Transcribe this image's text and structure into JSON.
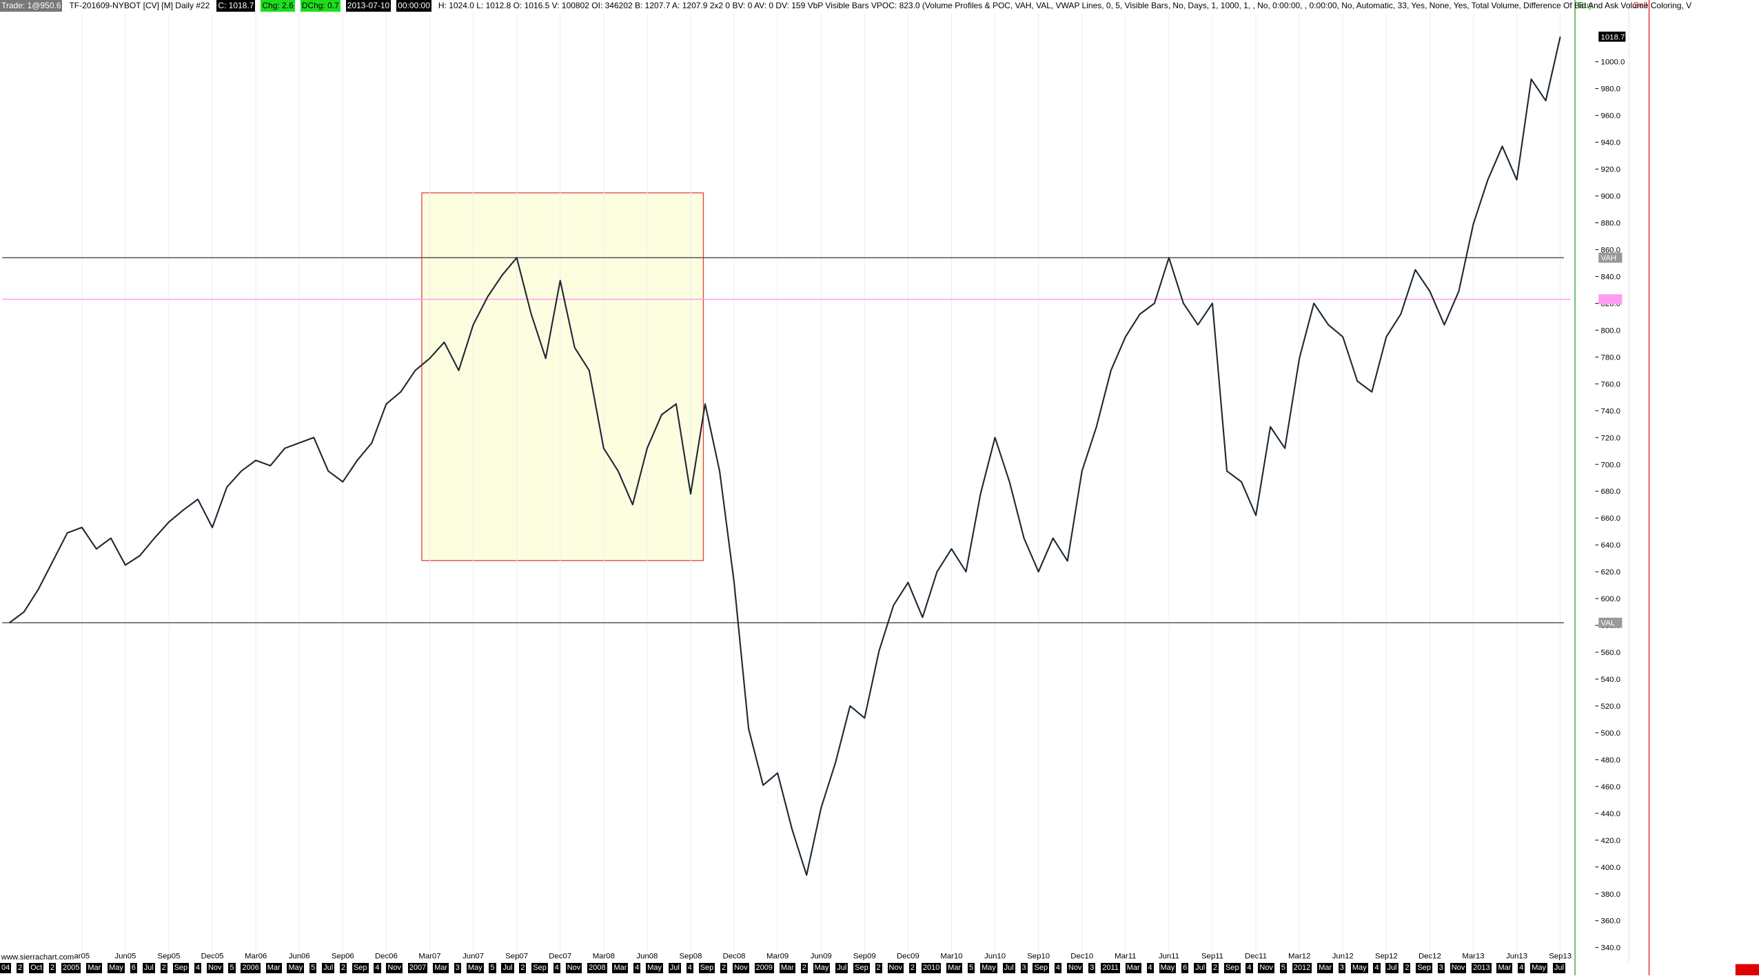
{
  "header": {
    "trade": "Trade: 1@950.6",
    "symbol": "TF-201609-NYBOT [CV] [M]  Daily  #22",
    "close": "C: 1018.7",
    "chg": "Chg: 2.6",
    "dchg": "DChg: 0.7",
    "date": "2013-07-10",
    "time": "00:00:00",
    "details": "H: 1024.0  L: 1012.8  O: 1016.5  V: 100802  OI: 346202  B: 1207.7  A: 1207.9  2x2  0  BV: 0  AV: 0  DV: 159  VbP Visible Bars  VPOC: 823.0   (Volume Profiles & POC, VAH, VAL, VWAP Lines, 0, 5, Visible Bars, No, Days, 1, 1000, 1, , No, 0:00:00, , 0:00:00, No, Automatic, 33, Yes, None, Yes, Total Volume, Difference Of Bid And Ask Volume Coloring, V",
    "buy": "Buy",
    "sell": "Sell"
  },
  "footer": {
    "site": "www.sierrachart.com",
    "date_bar": [
      "04",
      "2",
      "Oct",
      "2",
      "2005",
      "Mar",
      "May",
      "6",
      "Jul",
      "2",
      "Sep",
      "4",
      "Nov",
      "5",
      "2006",
      "Mar",
      "May",
      "5",
      "Jul",
      "2",
      "Sep",
      "4",
      "Nov",
      "2007",
      "Mar",
      "3",
      "May",
      "5",
      "Jul",
      "2",
      "Sep",
      "4",
      "Nov",
      "2008",
      "Mar",
      "4",
      "May",
      "Jul",
      "4",
      "Sep",
      "2",
      "Nov",
      "2009",
      "Mar",
      "2",
      "May",
      "Jul",
      "Sep",
      "2",
      "Nov",
      "2",
      "2010",
      "Mar",
      "5",
      "May",
      "Jul",
      "3",
      "Sep",
      "4",
      "Nov",
      "3",
      "2011",
      "Mar",
      "4",
      "May",
      "6",
      "Jul",
      "2",
      "Sep",
      "4",
      "Nov",
      "5",
      "2012",
      "Mar",
      "3",
      "May",
      "4",
      "Jul",
      "2",
      "Sep",
      "3",
      "Nov",
      "2013",
      "Mar",
      "4",
      "May",
      "Jul"
    ]
  },
  "chart_data": {
    "type": "line",
    "color": "#1c2833",
    "categories": [
      null,
      null,
      null,
      null,
      null,
      "ar05",
      null,
      null,
      "Jun05",
      null,
      null,
      "Sep05",
      null,
      null,
      "Dec05",
      null,
      null,
      "Mar06",
      null,
      null,
      "Jun06",
      null,
      null,
      "Sep06",
      null,
      null,
      "Dec06",
      null,
      null,
      "Mar07",
      null,
      null,
      "Jun07",
      null,
      null,
      "Sep07",
      null,
      null,
      "Dec07",
      null,
      null,
      "Mar08",
      null,
      null,
      "Jun08",
      null,
      null,
      "Sep08",
      null,
      null,
      "Dec08",
      null,
      null,
      "Mar09",
      null,
      null,
      "Jun09",
      null,
      null,
      "Sep09",
      null,
      null,
      "Dec09",
      null,
      null,
      "Mar10",
      null,
      null,
      "Jun10",
      null,
      null,
      "Sep10",
      null,
      null,
      "Dec10",
      null,
      null,
      "Mar11",
      null,
      null,
      "Jun11",
      null,
      null,
      "Sep11",
      null,
      null,
      "Dec11",
      null,
      null,
      "Mar12",
      null,
      null,
      "Jun12",
      null,
      null,
      "Sep12",
      null,
      null,
      "Dec12",
      null,
      null,
      "Mar13",
      null,
      null,
      "Jun13",
      null,
      null,
      "Sep13"
    ],
    "values": [
      582,
      590,
      607,
      628,
      649,
      653,
      637,
      645,
      625,
      632,
      645,
      657,
      666,
      674,
      653,
      683,
      695,
      703,
      699,
      712,
      716,
      720,
      695,
      687,
      703,
      716,
      745,
      754,
      770,
      779,
      791,
      770,
      804,
      825,
      841,
      854,
      812,
      779,
      837,
      787,
      770,
      712,
      695,
      670,
      712,
      737,
      745,
      678,
      745,
      695,
      612,
      503,
      461,
      470,
      428,
      394,
      444,
      478,
      520,
      511,
      561,
      595,
      612,
      586,
      620,
      637,
      620,
      678,
      720,
      687,
      645,
      620,
      645,
      628,
      695,
      728,
      770,
      795,
      812,
      820,
      854,
      820,
      804,
      820,
      695,
      687,
      662,
      728,
      712,
      779,
      820,
      804,
      795,
      762,
      754,
      795,
      812,
      845,
      829,
      804,
      829,
      879,
      912,
      937,
      912,
      987,
      971,
      1018.7
    ],
    "ylim": [
      336,
      1046
    ],
    "yticks": [
      {
        "value": 340,
        "label": "340.0"
      },
      {
        "value": 360,
        "label": "360.0"
      },
      {
        "value": 380,
        "label": "380.0"
      },
      {
        "value": 400,
        "label": "400.0"
      },
      {
        "value": 420,
        "label": "420.0"
      },
      {
        "value": 440,
        "label": "440.0"
      },
      {
        "value": 460,
        "label": "460.0"
      },
      {
        "value": 480,
        "label": "480.0"
      },
      {
        "value": 500,
        "label": "500.0"
      },
      {
        "value": 520,
        "label": "520.0"
      },
      {
        "value": 540,
        "label": "540.0"
      },
      {
        "value": 560,
        "label": "560.0"
      },
      {
        "value": 580,
        "label": "580.0"
      },
      {
        "value": 600,
        "label": "600.0"
      },
      {
        "value": 620,
        "label": "620.0"
      },
      {
        "value": 640,
        "label": "640.0"
      },
      {
        "value": 660,
        "label": "660.0"
      },
      {
        "value": 680,
        "label": "680.0"
      },
      {
        "value": 700,
        "label": "700.0"
      },
      {
        "value": 720,
        "label": "720.0"
      },
      {
        "value": 740,
        "label": "740.0"
      },
      {
        "value": 760,
        "label": "760.0"
      },
      {
        "value": 780,
        "label": "780.0"
      },
      {
        "value": 800,
        "label": "800.0"
      },
      {
        "value": 820,
        "label": "820.0"
      },
      {
        "value": 840,
        "label": "840.0"
      },
      {
        "value": 860,
        "label": "860.0"
      },
      {
        "value": 880,
        "label": "880.0"
      },
      {
        "value": 900,
        "label": "900.0"
      },
      {
        "value": 920,
        "label": "920.0"
      },
      {
        "value": 940,
        "label": "940.0"
      },
      {
        "value": 960,
        "label": "960.0"
      },
      {
        "value": 980,
        "label": "980.0"
      },
      {
        "value": 1000,
        "label": "1000.0"
      }
    ],
    "last_price": {
      "value": 1018.7,
      "label": "1018.7"
    },
    "levels": [
      {
        "name": "VAH",
        "value": 854,
        "color": "#555555"
      },
      {
        "name": "VAL",
        "value": 582,
        "color": "#555555"
      }
    ],
    "poc": {
      "value": 823,
      "color": "#ff9cf0"
    },
    "grid": true
  }
}
